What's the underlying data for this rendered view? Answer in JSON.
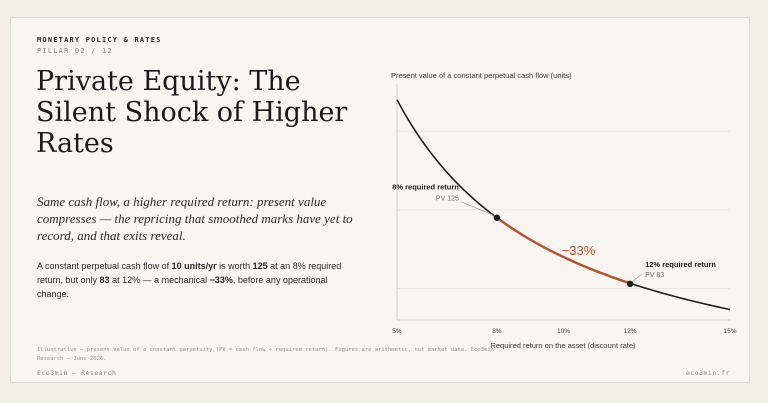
{
  "header": {
    "kicker": "MONETARY POLICY & RATES",
    "pillar": "PILLAR 02 / 12"
  },
  "title": "Private Equity: The Silent Shock of Higher Rates",
  "subtitle": "Same cash flow, a higher required return: present value compresses — the repricing that smoothed marks have yet to record, and that exits reveal.",
  "body": {
    "t1": "A constant perpetual cash flow of ",
    "b1": "10 units/yr",
    "t2": " is worth ",
    "b2": "125",
    "t3": " at an 8% required return, but only ",
    "b3": "83",
    "t4": " at 12% — a mechanical ",
    "b4": "−33%",
    "t5": ", before any operational change."
  },
  "footnote": "Illustrative — present value of a constant perpetuity (PV = cash flow ÷ required return). Figures are arithmetic, not market data. Eco3min Research — June 2026.",
  "footer": {
    "left": "Eco3min — Research",
    "right": "eco3min.fr"
  },
  "chart_data": {
    "type": "line",
    "ylabel": "Present value of a constant perpetual cash flow (units)",
    "xlabel": "Required return on the asset (discount rate)",
    "cash_flow": 10,
    "xlim": [
      5,
      15
    ],
    "ylim": [
      60,
      210
    ],
    "x_ticks": [
      "5%",
      "8%",
      "10%",
      "12%",
      "15%"
    ],
    "x_tick_values": [
      5,
      8,
      10,
      12,
      15
    ],
    "y_gridlines": [
      80,
      130,
      180
    ],
    "grid": true,
    "highlight_range": [
      8,
      12
    ],
    "colors": {
      "curve": "#1e1e1e",
      "highlight": "#b8502e",
      "grid": "#e7e2d9",
      "axis": "#cfc9bd"
    },
    "points": [
      {
        "x": 8,
        "y": 125,
        "label": "8% required return",
        "value_label": "PV 125"
      },
      {
        "x": 12,
        "y": 83,
        "label": "12% required return",
        "value_label": "PV 83"
      }
    ],
    "change_label": "−33%"
  }
}
